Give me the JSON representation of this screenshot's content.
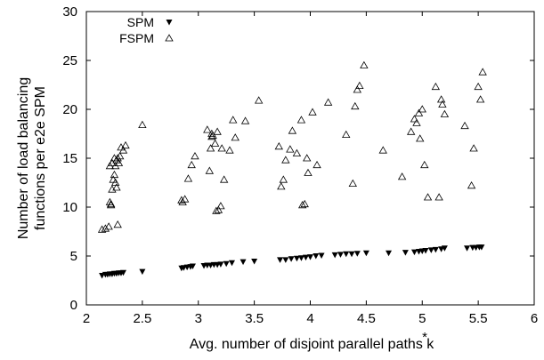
{
  "chart_data": {
    "type": "scatter",
    "xlabel": "Avg. number of disjoint parallel paths k",
    "xlabel_superscript": "*",
    "ylabel_line1": "Number of load balancing",
    "ylabel_line2": "functions per e2e SPM",
    "xlim": [
      2,
      6
    ],
    "ylim": [
      0,
      30
    ],
    "x_ticks": [
      "2",
      "2.5",
      "3",
      "3.5",
      "4",
      "4.5",
      "5",
      "5.5",
      "6"
    ],
    "y_ticks": [
      "0",
      "5",
      "10",
      "15",
      "20",
      "25",
      "30"
    ],
    "grid": false,
    "legend_position": "top-left",
    "series": [
      {
        "name": "SPM",
        "marker": "filled-down-triangle",
        "color": "#000000",
        "x": [
          2.14,
          2.17,
          2.19,
          2.21,
          2.23,
          2.25,
          2.27,
          2.29,
          2.31,
          2.33,
          2.5,
          2.85,
          2.87,
          2.9,
          2.93,
          2.95,
          3.05,
          3.08,
          3.11,
          3.14,
          3.17,
          3.2,
          3.25,
          3.3,
          3.4,
          3.5,
          3.73,
          3.78,
          3.83,
          3.88,
          3.92,
          3.96,
          4.0,
          4.05,
          4.1,
          4.22,
          4.27,
          4.32,
          4.37,
          4.42,
          4.5,
          4.7,
          4.85,
          4.93,
          4.97,
          5.0,
          5.03,
          5.08,
          5.12,
          5.17,
          5.2,
          5.4,
          5.45,
          5.48,
          5.51,
          5.53
        ],
        "y": [
          3.0,
          3.1,
          3.1,
          3.15,
          3.15,
          3.2,
          3.2,
          3.25,
          3.25,
          3.3,
          3.4,
          3.75,
          3.8,
          3.85,
          3.9,
          3.95,
          4.0,
          4.05,
          4.05,
          4.1,
          4.1,
          4.15,
          4.2,
          4.3,
          4.4,
          4.45,
          4.6,
          4.6,
          4.7,
          4.75,
          4.8,
          4.85,
          4.9,
          5.0,
          5.05,
          5.1,
          5.15,
          5.2,
          5.2,
          5.25,
          5.3,
          5.3,
          5.35,
          5.4,
          5.45,
          5.5,
          5.55,
          5.6,
          5.65,
          5.7,
          5.8,
          5.8,
          5.85,
          5.85,
          5.9,
          5.9
        ]
      },
      {
        "name": "FSPM",
        "marker": "hollow-up-triangle",
        "color": "#000000",
        "x": [
          2.14,
          2.17,
          2.2,
          2.21,
          2.22,
          2.23,
          2.24,
          2.25,
          2.26,
          2.27,
          2.28,
          2.29,
          2.3,
          2.31,
          2.33,
          2.35,
          2.21,
          2.23,
          2.25,
          2.26,
          2.27,
          2.22,
          2.28,
          2.5,
          2.85,
          2.86,
          2.88,
          2.91,
          2.94,
          2.97,
          3.08,
          3.1,
          3.11,
          3.12,
          3.13,
          3.15,
          3.16,
          3.18,
          3.2,
          3.12,
          3.17,
          3.21,
          3.23,
          3.28,
          3.31,
          3.33,
          3.42,
          3.54,
          3.72,
          3.74,
          3.76,
          3.78,
          3.82,
          3.84,
          3.88,
          3.92,
          3.93,
          3.95,
          3.97,
          3.98,
          4.02,
          4.06,
          4.16,
          4.32,
          4.38,
          4.4,
          4.42,
          4.44,
          4.48,
          4.65,
          4.82,
          4.9,
          4.93,
          4.95,
          4.97,
          4.98,
          5.0,
          5.02,
          5.05,
          5.12,
          5.15,
          5.17,
          5.18,
          5.2,
          5.38,
          5.44,
          5.46,
          5.5,
          5.52,
          5.54
        ],
        "y": [
          7.7,
          7.8,
          8.0,
          10.5,
          10.3,
          11.8,
          12.8,
          13.3,
          14.2,
          14.8,
          15.0,
          14.5,
          15.2,
          16.1,
          15.8,
          16.3,
          14.2,
          14.5,
          15.0,
          12.5,
          12.0,
          10.2,
          8.2,
          18.4,
          10.7,
          10.5,
          10.8,
          12.9,
          14.3,
          15.2,
          17.9,
          13.7,
          16.0,
          17.2,
          17.3,
          16.5,
          9.6,
          9.7,
          10.1,
          17.5,
          17.7,
          16.0,
          12.8,
          15.8,
          18.9,
          17.1,
          18.8,
          20.9,
          16.2,
          12.1,
          12.8,
          14.8,
          15.9,
          17.8,
          15.5,
          18.9,
          10.2,
          10.3,
          15.0,
          13.5,
          19.7,
          14.3,
          20.7,
          17.4,
          12.4,
          20.3,
          22.0,
          22.4,
          24.5,
          15.8,
          13.1,
          17.7,
          19.0,
          18.6,
          19.6,
          17.0,
          20.0,
          14.3,
          11.0,
          22.3,
          11.0,
          21.0,
          20.5,
          19.5,
          18.3,
          12.2,
          16.0,
          22.3,
          21.0,
          23.8
        ]
      }
    ]
  }
}
